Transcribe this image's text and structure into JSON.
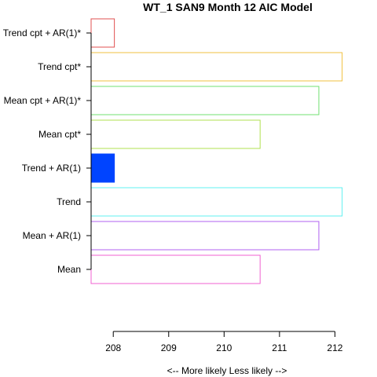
{
  "chart_data": {
    "type": "bar",
    "orientation": "horizontal",
    "title": "WT_1 SAN9 Month 12 AIC Model",
    "xlabel": "<--  More likely     Less likely  -->",
    "ylabel": "",
    "xlim": [
      207.6,
      212.15
    ],
    "x_ticks": [
      "208",
      "209",
      "210",
      "211",
      "212"
    ],
    "x_tick_values": [
      208,
      209,
      210,
      211,
      212
    ],
    "grid": false,
    "categories": [
      "Trend cpt + AR(1)*",
      "Trend cpt*",
      "Mean cpt + AR(1)*",
      "Mean cpt*",
      "Trend + AR(1)",
      "Trend",
      "Mean + AR(1)",
      "Mean"
    ],
    "values": [
      208.02,
      212.13,
      211.71,
      210.65,
      208.02,
      212.13,
      211.71,
      210.65
    ],
    "colors": [
      "#e05050",
      "#f0c040",
      "#70e070",
      "#b0e050",
      "#0044ff",
      "#60f0f0",
      "#b060f0",
      "#f060d0"
    ],
    "filled": [
      false,
      false,
      false,
      false,
      true,
      false,
      false,
      false
    ]
  }
}
